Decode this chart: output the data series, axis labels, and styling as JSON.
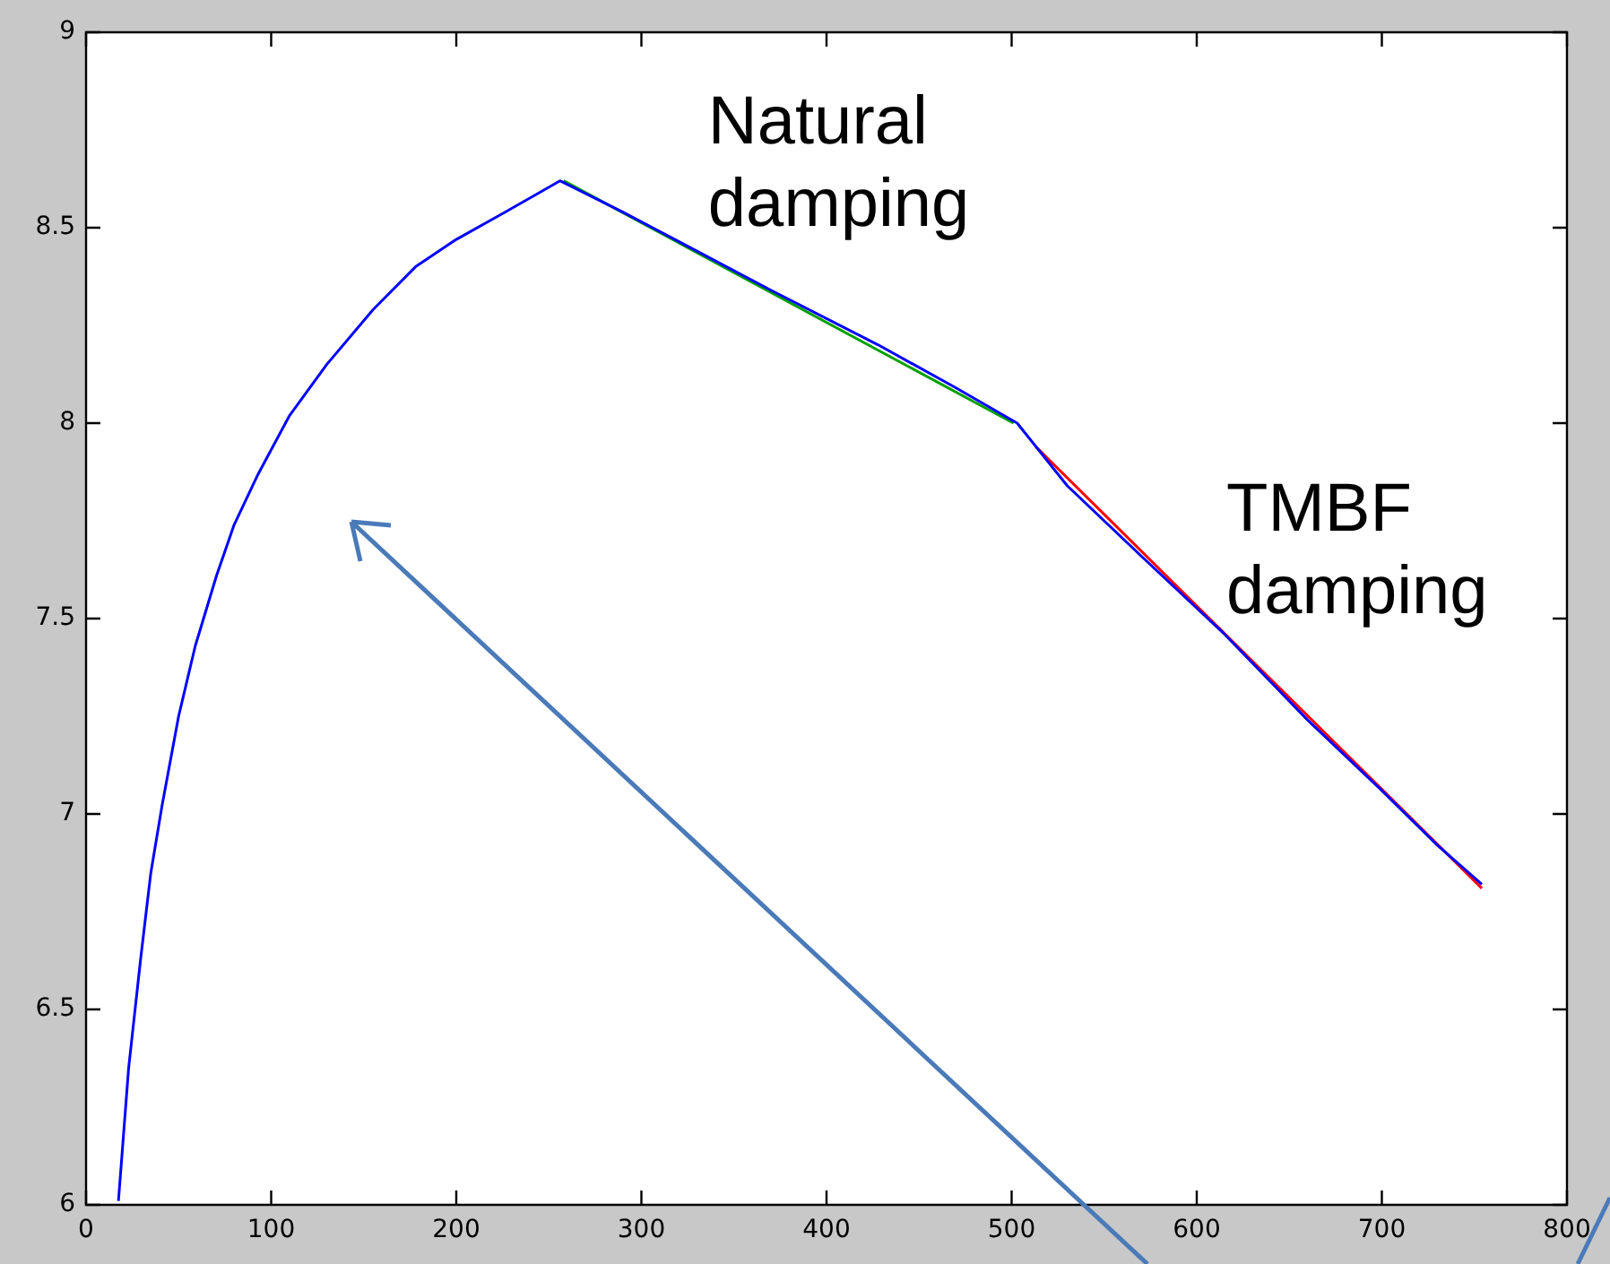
{
  "chart_data": {
    "type": "line",
    "xlim": [
      0,
      800
    ],
    "ylim": [
      6,
      9
    ],
    "xticks": [
      0,
      100,
      200,
      300,
      400,
      500,
      600,
      700,
      800
    ],
    "yticks": [
      6,
      {
        "value": 6.5,
        "label": "6.5"
      },
      7,
      {
        "value": 7.5,
        "label": "7.5"
      },
      8,
      {
        "value": 8.5,
        "label": "8.5"
      },
      9
    ],
    "grid": false,
    "legend": false,
    "marker": "none",
    "line_style": "solid",
    "series": [
      {
        "color": "#0000ff",
        "x": [
          17.5,
          23,
          29.5,
          35,
          41,
          50,
          59,
          70.5,
          80,
          93,
          110,
          130,
          155,
          178,
          200,
          226.5,
          245,
          256,
          290,
          330,
          370,
          428,
          470,
          503,
          530,
          570,
          615,
          660,
          700,
          730,
          754
        ],
        "values": [
          6.01,
          6.35,
          6.63,
          6.85,
          7.02,
          7.25,
          7.43,
          7.61,
          7.74,
          7.87,
          8.02,
          8.15,
          8.29,
          8.4,
          8.47,
          8.54,
          8.59,
          8.62,
          8.54,
          8.44,
          8.34,
          8.2,
          8.09,
          8.0,
          7.84,
          7.66,
          7.46,
          7.24,
          7.06,
          6.92,
          6.82
        ]
      },
      {
        "color": "#00a000",
        "x": [
          258,
          501
        ],
        "values": [
          8.62,
          8.0
        ]
      },
      {
        "color": "#ff0000",
        "x": [
          513,
          754
        ],
        "values": [
          7.94,
          6.81
        ]
      }
    ],
    "annotations": [
      "Natural damping",
      "TMBF damping"
    ]
  }
}
